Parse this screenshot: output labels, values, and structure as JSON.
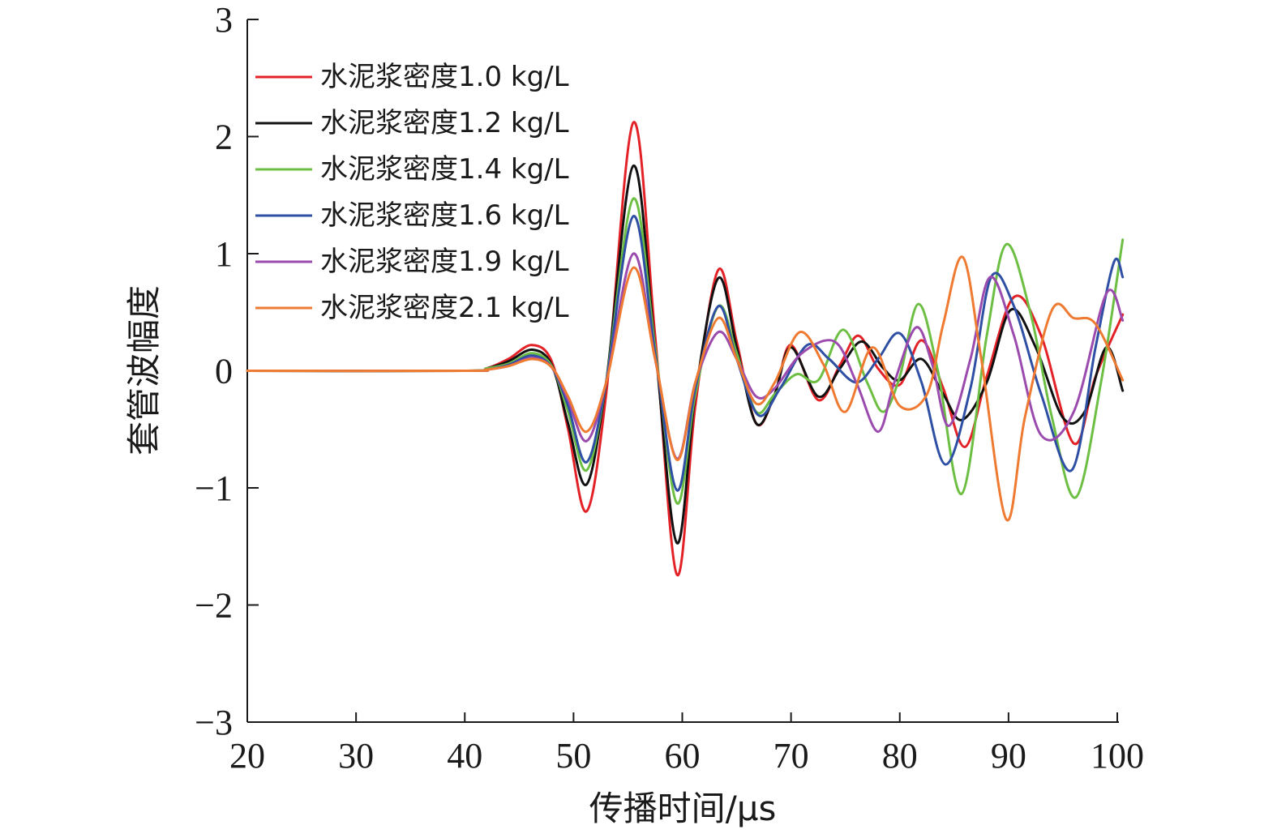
{
  "chart_data": {
    "type": "line",
    "xlabel": "传播时间/μs",
    "ylabel": "套管波幅度",
    "xlim": [
      20,
      100
    ],
    "ylim": [
      -3,
      3
    ],
    "xticks": [
      20,
      30,
      40,
      50,
      60,
      70,
      80,
      90,
      100
    ],
    "yticks": [
      3,
      2,
      1,
      0,
      -1,
      -2,
      -3
    ],
    "ytick_labels": [
      "3",
      "2",
      "1",
      "0",
      "−1",
      "−2",
      "−3"
    ],
    "grid": false,
    "legend_position": "top-left",
    "series": [
      {
        "name": "水泥浆密度1.0 kg/L",
        "color": "#e32228",
        "x": [
          20,
          40,
          42,
          44,
          46.2,
          48,
          49.5,
          51.2,
          53,
          55.5,
          57.5,
          59.5,
          61.2,
          63.3,
          65,
          66.8,
          68.5,
          70,
          72.5,
          74.5,
          76.2,
          78,
          80,
          82,
          84,
          86,
          88,
          90.5,
          93,
          96,
          98,
          100.5
        ],
        "y": [
          0,
          0,
          0.02,
          0.1,
          0.22,
          0.08,
          -0.5,
          -1.2,
          -0.2,
          2.12,
          0.3,
          -1.74,
          -0.3,
          0.86,
          0.25,
          -0.45,
          -0.2,
          0.22,
          -0.25,
          0.05,
          0.3,
          0.02,
          -0.12,
          0.26,
          -0.15,
          -0.65,
          -0.05,
          0.63,
          0.3,
          -0.62,
          -0.05,
          0.48
        ]
      },
      {
        "name": "水泥浆密度1.2 kg/L",
        "color": "#111111",
        "x": [
          20,
          40,
          42,
          44,
          46.2,
          48,
          49.5,
          51.2,
          53,
          55.5,
          57.5,
          59.5,
          61.2,
          63.3,
          65,
          66.8,
          68.5,
          70,
          72.5,
          74.5,
          76.5,
          78.5,
          80,
          82,
          84,
          85.7,
          88,
          90.2,
          92.5,
          95,
          97,
          99,
          100.5
        ],
        "y": [
          0,
          0,
          0.02,
          0.08,
          0.18,
          0.05,
          -0.45,
          -0.97,
          -0.1,
          1.75,
          0.2,
          -1.47,
          -0.2,
          0.79,
          0.2,
          -0.45,
          -0.2,
          0.2,
          -0.22,
          0.02,
          0.25,
          0.02,
          -0.08,
          0.1,
          -0.2,
          -0.42,
          -0.1,
          0.52,
          0.2,
          -0.4,
          -0.35,
          0.2,
          -0.17
        ]
      },
      {
        "name": "水泥浆密度1.4 kg/L",
        "color": "#6dbf44",
        "x": [
          20,
          40,
          42,
          44,
          46.2,
          48,
          49.5,
          51.2,
          53,
          55.5,
          57.5,
          59.5,
          61.2,
          63.3,
          65,
          66.8,
          68.5,
          70.5,
          72.5,
          74.8,
          77,
          78.5,
          80,
          81.7,
          83.5,
          85.7,
          88,
          89.8,
          92,
          94,
          96.2,
          98.5,
          100.5
        ],
        "y": [
          0,
          0,
          0.02,
          0.06,
          0.15,
          0.04,
          -0.35,
          -0.85,
          -0.1,
          1.47,
          0.2,
          -1.13,
          -0.2,
          0.55,
          0.15,
          -0.35,
          -0.2,
          -0.03,
          -0.08,
          0.35,
          -0.1,
          -0.35,
          -0.05,
          0.57,
          0.0,
          -1.05,
          0.3,
          1.08,
          0.5,
          -0.4,
          -1.08,
          -0.1,
          1.12
        ]
      },
      {
        "name": "水泥浆密度1.6 kg/L",
        "color": "#2e4fa3",
        "x": [
          20,
          40,
          42,
          44,
          46.2,
          48,
          49.5,
          51.2,
          53,
          55.5,
          57.5,
          59.5,
          61.2,
          63.3,
          65,
          67,
          69,
          71.5,
          73.5,
          76,
          78,
          80,
          82,
          84.2,
          86.5,
          88.4,
          90.5,
          93,
          95.8,
          98,
          99.7,
          100.5
        ],
        "y": [
          0,
          0,
          0.01,
          0.05,
          0.13,
          0.03,
          -0.3,
          -0.78,
          -0.1,
          1.32,
          0.15,
          -1.02,
          -0.15,
          0.55,
          0.1,
          -0.38,
          -0.15,
          0.22,
          0.1,
          -0.1,
          0.1,
          0.32,
          -0.1,
          -0.8,
          -0.15,
          0.8,
          0.55,
          -0.2,
          -0.85,
          0.2,
          0.93,
          0.8
        ]
      },
      {
        "name": "水泥浆密度1.9 kg/L",
        "color": "#9b4aad",
        "x": [
          20,
          40,
          42,
          44,
          46.2,
          48,
          49.5,
          51.2,
          53,
          55.5,
          57.5,
          59.5,
          61.2,
          63.3,
          65,
          66.8,
          68.5,
          71,
          74,
          76,
          78,
          79.5,
          81.5,
          83,
          84.5,
          86.5,
          88.3,
          90.5,
          93,
          96,
          99,
          100.5
        ],
        "y": [
          0,
          0,
          0.01,
          0.04,
          0.11,
          0.03,
          -0.25,
          -0.6,
          -0.1,
          1.0,
          0.1,
          -0.75,
          -0.1,
          0.33,
          0.1,
          -0.22,
          -0.15,
          0.15,
          0.25,
          -0.1,
          -0.52,
          -0.1,
          0.37,
          0.05,
          -0.47,
          0.1,
          0.8,
          0.3,
          -0.55,
          -0.35,
          0.66,
          0.43
        ]
      },
      {
        "name": "水泥浆密度2.1 kg/L",
        "color": "#ef7a31",
        "x": [
          20,
          40,
          42,
          44,
          46.2,
          48,
          49.5,
          51.2,
          53,
          55.5,
          57.5,
          59.5,
          61.2,
          63.3,
          65,
          66.8,
          68.5,
          70.8,
          73,
          75,
          77.5,
          80,
          82.5,
          84,
          85.8,
          87.5,
          89.8,
          91.5,
          94,
          96,
          98,
          100.5
        ],
        "y": [
          0,
          0,
          0.01,
          0.04,
          0.1,
          0.03,
          -0.22,
          -0.52,
          -0.1,
          0.88,
          0.1,
          -0.76,
          -0.1,
          0.45,
          0.1,
          -0.28,
          -0.1,
          0.33,
          0.05,
          -0.35,
          0.2,
          -0.3,
          -0.2,
          0.4,
          0.97,
          0.1,
          -1.27,
          -0.4,
          0.52,
          0.45,
          0.4,
          -0.08
        ]
      }
    ]
  }
}
